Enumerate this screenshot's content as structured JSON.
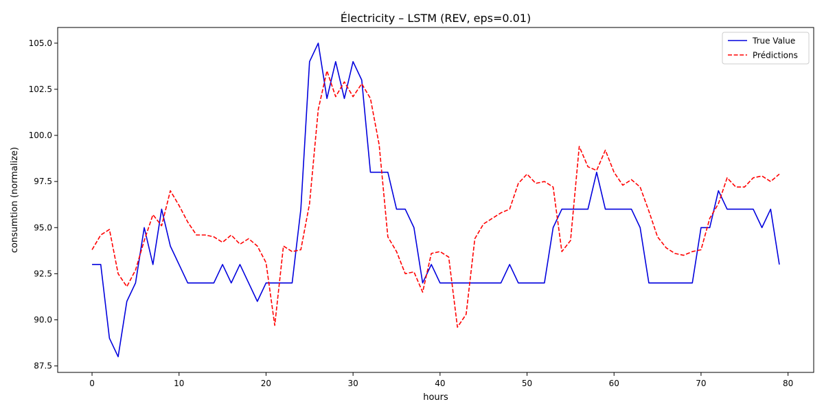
{
  "chart_data": {
    "type": "line",
    "title": "Électricity – LSTM (REV, eps=0.01)",
    "xlabel": "hours",
    "ylabel": "consumtion (normalize)",
    "xlim": [
      -3.95,
      82.95
    ],
    "ylim": [
      87.15,
      105.85
    ],
    "xticks": [
      0,
      10,
      20,
      30,
      40,
      50,
      60,
      70,
      80
    ],
    "yticks": [
      87.5,
      90.0,
      92.5,
      95.0,
      97.5,
      100.0,
      102.5,
      105.0
    ],
    "ytick_labels": [
      "87.5",
      "90.0",
      "92.5",
      "95.0",
      "97.5",
      "100.0",
      "102.5",
      "105.0"
    ],
    "grid": false,
    "legend_position": "top-right",
    "series": [
      {
        "name": "True Value",
        "color": "#0000dd",
        "style": "solid",
        "values": [
          93,
          93,
          89,
          88,
          91,
          92,
          95,
          93,
          96,
          94,
          93,
          92,
          92,
          92,
          92,
          93,
          92,
          93,
          92,
          91,
          92,
          92,
          92,
          92,
          96,
          104,
          105,
          102,
          104,
          102,
          104,
          103,
          98,
          98,
          98,
          96,
          96,
          95,
          92,
          93,
          92,
          92,
          92,
          92,
          92,
          92,
          92,
          92,
          93,
          92,
          92,
          92,
          92,
          95,
          96,
          96,
          96,
          96,
          98,
          96,
          96,
          96,
          96,
          95,
          92,
          92,
          92,
          92,
          92,
          92,
          95,
          95,
          97,
          96,
          96,
          96,
          96,
          95,
          96,
          93
        ]
      },
      {
        "name": "Prédictions",
        "color": "#ff0000",
        "style": "dashed",
        "values": [
          93.8,
          94.6,
          94.9,
          92.5,
          91.8,
          92.7,
          94.3,
          95.7,
          95.1,
          97.0,
          96.2,
          95.3,
          94.6,
          94.6,
          94.5,
          94.2,
          94.6,
          94.1,
          94.4,
          94.0,
          93.1,
          89.7,
          94.0,
          93.7,
          93.8,
          96.3,
          101.4,
          103.5,
          102.1,
          102.9,
          102.1,
          102.8,
          102.0,
          99.5,
          94.5,
          93.7,
          92.5,
          92.6,
          91.5,
          93.6,
          93.7,
          93.4,
          89.6,
          90.3,
          94.4,
          95.2,
          95.5,
          95.8,
          96.0,
          97.4,
          97.9,
          97.4,
          97.5,
          97.2,
          93.7,
          94.3,
          99.4,
          98.3,
          98.1,
          99.2,
          98.0,
          97.3,
          97.6,
          97.2,
          95.9,
          94.5,
          93.9,
          93.6,
          93.5,
          93.7,
          93.8,
          95.5,
          96.3,
          97.7,
          97.2,
          97.2,
          97.7,
          97.8,
          97.5,
          97.9
        ]
      }
    ]
  }
}
